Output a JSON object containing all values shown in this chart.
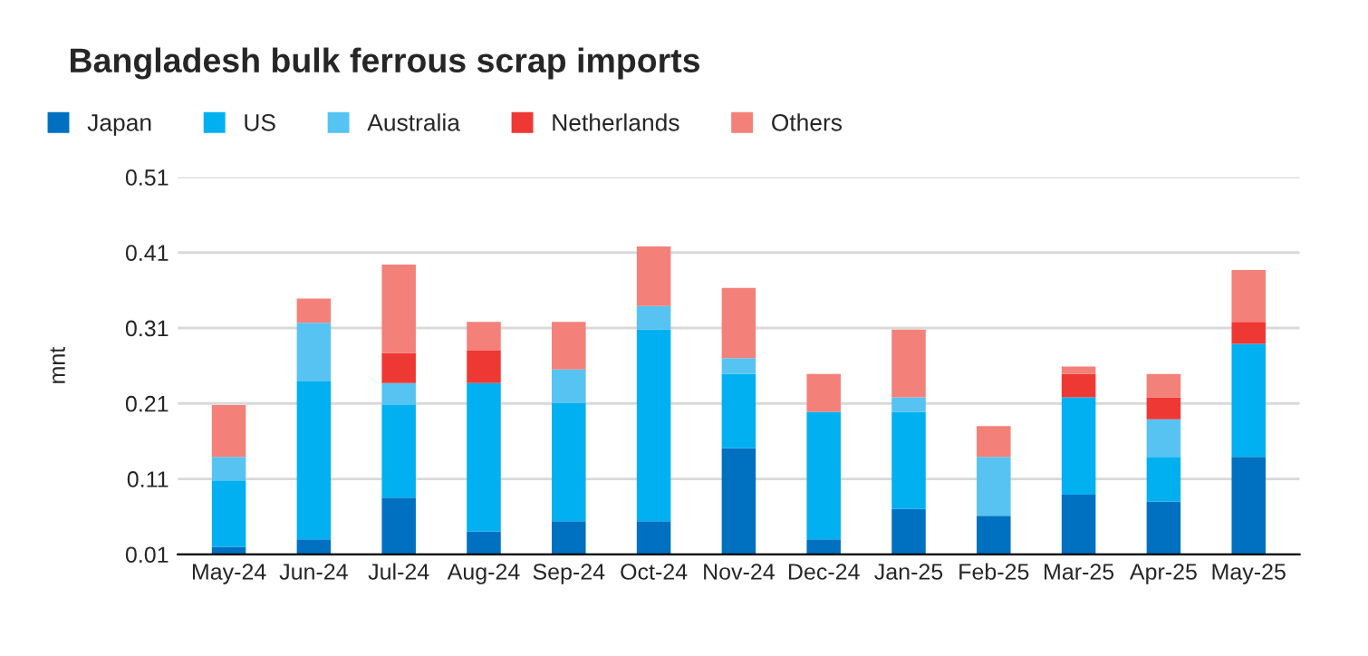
{
  "chart_data": {
    "type": "bar",
    "title": "Bangladesh bulk ferrous scrap imports",
    "ylabel": "mnt",
    "categories": [
      "May-24",
      "Jun-24",
      "Jul-24",
      "Aug-24",
      "Sep-24",
      "Oct-24",
      "Nov-24",
      "Dec-24",
      "Jan-25",
      "Feb-25",
      "Mar-25",
      "Apr-25",
      "May-25"
    ],
    "stacked": true,
    "series": [
      {
        "name": "Japan",
        "color": "#0070c0",
        "values": [
          0.02,
          0.03,
          0.085,
          0.04,
          0.054,
          0.054,
          0.151,
          0.03,
          0.07,
          0.061,
          0.089,
          0.08,
          0.139
        ]
      },
      {
        "name": "US",
        "color": "#00b0f0",
        "values": [
          0.088,
          0.209,
          0.123,
          0.197,
          0.157,
          0.254,
          0.098,
          0.169,
          0.129,
          null,
          0.129,
          0.059,
          0.15
        ]
      },
      {
        "name": "Australia",
        "color": "#56c3f2",
        "values": [
          0.031,
          0.078,
          0.029,
          null,
          0.044,
          0.031,
          0.021,
          null,
          0.019,
          0.078,
          null,
          0.05,
          null
        ]
      },
      {
        "name": "Netherlands",
        "color": "#ee3834",
        "values": [
          null,
          null,
          0.04,
          0.043,
          null,
          null,
          null,
          null,
          null,
          null,
          0.031,
          0.029,
          0.029
        ]
      },
      {
        "name": "Others",
        "color": "#f4807a",
        "values": [
          0.069,
          0.032,
          0.117,
          0.038,
          0.063,
          0.079,
          0.093,
          0.05,
          0.09,
          0.041,
          0.01,
          0.031,
          0.069
        ]
      }
    ],
    "ylim": [
      0.01,
      0.51
    ],
    "yticks": [
      0.01,
      0.11,
      0.21,
      0.31,
      0.41,
      0.51
    ],
    "grid": "y",
    "legend": "top left"
  }
}
